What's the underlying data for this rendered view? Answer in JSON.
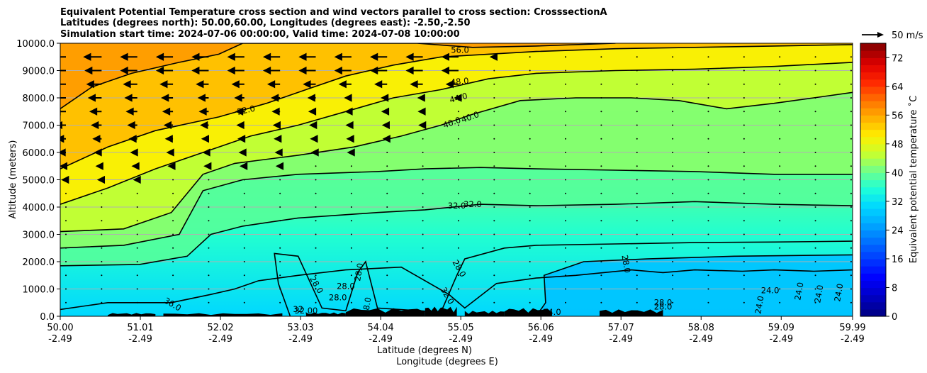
{
  "chart_data": {
    "type": "heatmap",
    "title_lines": [
      "Equivalent Potential Temperature cross section and wind vectors parallel to cross section: CrosssectionA",
      "Latitudes (degrees north): 50.00,60.00, Longitudes (degrees east): -2.50,-2.50",
      "Simulation start time: 2024-07-06 00:00:00, Valid time: 2024-07-08 10:00:00"
    ],
    "ylabel": "Altitude (meters)",
    "xlabel_lat": "Latitude (degrees N)",
    "xlabel_lon": "Longitude (degrees E)",
    "x_tick_values": [
      50.0,
      51.01,
      52.02,
      53.03,
      54.04,
      55.05,
      56.06,
      57.07,
      58.08,
      59.09,
      59.99
    ],
    "x_tick_labels": [
      "50.00",
      "51.01",
      "52.02",
      "53.03",
      "54.04",
      "55.05",
      "56.06",
      "57.07",
      "58.08",
      "59.09",
      "59.99"
    ],
    "x_tick_sublabels": [
      "-2.49",
      "-2.49",
      "-2.49",
      "-2.49",
      "-2.49",
      "-2.49",
      "-2.49",
      "-2.49",
      "-2.49",
      "-2.49",
      "-2.49"
    ],
    "xlim": [
      50.0,
      59.99
    ],
    "y_ticks": [
      0,
      1000,
      2000,
      3000,
      4000,
      5000,
      6000,
      7000,
      8000,
      9000,
      10000
    ],
    "y_tick_labels": [
      "0.0",
      "1000.0",
      "2000.0",
      "3000.0",
      "4000.0",
      "5000.0",
      "6000.0",
      "7000.0",
      "8000.0",
      "9000.0",
      "10000.0"
    ],
    "ylim": [
      0,
      10000
    ],
    "grid": "horizontal",
    "colorbar": {
      "label": "Equivalent potential temperature ˚C",
      "range": [
        0,
        76
      ],
      "ticks": [
        0,
        8,
        16,
        24,
        32,
        40,
        48,
        56,
        64,
        72
      ],
      "tick_labels": [
        "0",
        "8",
        "16",
        "24",
        "32",
        "40",
        "48",
        "56",
        "64",
        "72"
      ],
      "colors": [
        "#00008c",
        "#0000c8",
        "#0000ff",
        "#0038ff",
        "#0070ff",
        "#00a8ff",
        "#00d8ff",
        "#1effd8",
        "#70ff8a",
        "#c8ff2e",
        "#ffee00",
        "#ffb000",
        "#ff7000",
        "#ff2800",
        "#e00000",
        "#900000"
      ]
    },
    "quiver_key": {
      "label": "50 m/s",
      "speed": 50
    },
    "contours": [
      {
        "level": 24,
        "label": "24.0",
        "points": [
          [
            56.0,
            0
          ],
          [
            56.12,
            500
          ],
          [
            56.1,
            1500
          ],
          [
            56.6,
            2000
          ],
          [
            57.4,
            2100
          ],
          [
            58.5,
            2200
          ],
          [
            59.99,
            2250
          ]
        ]
      },
      {
        "level": 28,
        "label": "28.0",
        "points": [
          [
            52.9,
            0
          ],
          [
            52.75,
            1200
          ],
          [
            52.7,
            2300
          ],
          [
            53.0,
            2200
          ],
          [
            53.3,
            300
          ],
          [
            53.6,
            200
          ],
          [
            53.75,
            1600
          ],
          [
            53.85,
            2000
          ],
          [
            54.0,
            300
          ],
          [
            54.8,
            150
          ],
          [
            55.0,
            1500
          ],
          [
            55.1,
            2100
          ],
          [
            55.6,
            2500
          ],
          [
            56.0,
            2600
          ],
          [
            57.0,
            2650
          ],
          [
            58.0,
            2700
          ],
          [
            59.0,
            2720
          ],
          [
            59.99,
            2750
          ]
        ]
      },
      {
        "level": 32,
        "label": "32.0",
        "points": [
          [
            50.0,
            250
          ],
          [
            50.6,
            500
          ],
          [
            51.4,
            500
          ],
          [
            51.9,
            800
          ],
          [
            52.2,
            1000
          ],
          [
            52.5,
            1300
          ],
          [
            53.0,
            1500
          ],
          [
            53.6,
            1700
          ],
          [
            54.3,
            1800
          ],
          [
            54.9,
            800
          ],
          [
            55.1,
            300
          ],
          [
            55.5,
            1200
          ],
          [
            56.0,
            1400
          ],
          [
            56.5,
            1500
          ],
          [
            57.2,
            1700
          ],
          [
            57.6,
            1600
          ],
          [
            58.0,
            1700
          ],
          [
            58.6,
            1650
          ],
          [
            59.0,
            1700
          ],
          [
            59.5,
            1650
          ],
          [
            59.99,
            1700
          ]
        ]
      },
      {
        "level": 36,
        "label": "36.0",
        "points": [
          [
            50.0,
            1850
          ],
          [
            51.0,
            1900
          ],
          [
            51.6,
            2200
          ],
          [
            51.9,
            3000
          ],
          [
            52.3,
            3300
          ],
          [
            53.0,
            3600
          ],
          [
            54.0,
            3800
          ],
          [
            54.6,
            3900
          ],
          [
            55.3,
            4100
          ],
          [
            56.0,
            4050
          ],
          [
            57.0,
            4100
          ],
          [
            58.0,
            4200
          ],
          [
            59.0,
            4100
          ],
          [
            59.99,
            4050
          ]
        ]
      },
      {
        "level": 40,
        "label": "40.0",
        "points": [
          [
            50.0,
            2500
          ],
          [
            50.8,
            2600
          ],
          [
            51.5,
            3000
          ],
          [
            51.8,
            4600
          ],
          [
            52.3,
            5000
          ],
          [
            53.0,
            5200
          ],
          [
            54.0,
            5300
          ],
          [
            54.6,
            5400
          ],
          [
            55.3,
            5450
          ],
          [
            56.0,
            5400
          ],
          [
            57.0,
            5350
          ],
          [
            58.0,
            5300
          ],
          [
            59.0,
            5200
          ],
          [
            59.99,
            5200
          ]
        ]
      },
      {
        "level": 44,
        "label": "44.0",
        "points": [
          [
            50.0,
            3100
          ],
          [
            50.8,
            3200
          ],
          [
            51.4,
            3800
          ],
          [
            51.8,
            5200
          ],
          [
            52.2,
            5600
          ],
          [
            53.0,
            5900
          ],
          [
            53.7,
            6200
          ],
          [
            54.3,
            6600
          ],
          [
            54.8,
            7000
          ],
          [
            55.2,
            7400
          ],
          [
            55.8,
            7900
          ],
          [
            56.5,
            8000
          ],
          [
            57.2,
            8000
          ],
          [
            57.8,
            7900
          ],
          [
            58.4,
            7600
          ],
          [
            59.0,
            7800
          ],
          [
            59.5,
            8000
          ],
          [
            59.99,
            8200
          ]
        ]
      },
      {
        "level": 48,
        "label": "48.0",
        "points": [
          [
            50.0,
            4100
          ],
          [
            50.6,
            4700
          ],
          [
            51.2,
            5400
          ],
          [
            51.8,
            6000
          ],
          [
            52.4,
            6600
          ],
          [
            53.0,
            7000
          ],
          [
            53.6,
            7500
          ],
          [
            54.2,
            8000
          ],
          [
            54.8,
            8300
          ],
          [
            55.4,
            8700
          ],
          [
            56.0,
            8900
          ],
          [
            57.0,
            9000
          ],
          [
            58.0,
            9050
          ],
          [
            59.0,
            9150
          ],
          [
            59.99,
            9300
          ]
        ]
      },
      {
        "level": 52,
        "label": "52.0",
        "points": [
          [
            50.0,
            5400
          ],
          [
            50.6,
            6200
          ],
          [
            51.2,
            6800
          ],
          [
            52.0,
            7300
          ],
          [
            52.6,
            7800
          ],
          [
            53.1,
            8300
          ],
          [
            53.6,
            8800
          ],
          [
            54.2,
            9200
          ],
          [
            54.8,
            9500
          ],
          [
            55.4,
            9600
          ],
          [
            56.0,
            9700
          ],
          [
            57.0,
            9800
          ],
          [
            58.0,
            9850
          ],
          [
            59.0,
            9900
          ],
          [
            59.99,
            9950
          ]
        ]
      },
      {
        "level": 56,
        "label": "56.0",
        "points": [
          [
            50.0,
            7600
          ],
          [
            50.4,
            8400
          ],
          [
            50.9,
            8900
          ],
          [
            51.5,
            9300
          ],
          [
            52.0,
            9600
          ],
          [
            52.3,
            10000
          ],
          [
            54.5,
            10000
          ],
          [
            55.2,
            9850
          ],
          [
            56.0,
            9900
          ],
          [
            57.0,
            10000
          ]
        ]
      }
    ],
    "contour_labels": [
      {
        "text": "52.0",
        "x": 52.35,
        "y": 7450,
        "angle": -12
      },
      {
        "text": "56.0",
        "x": 55.04,
        "y": 9650,
        "angle": 0
      },
      {
        "text": "48.0",
        "x": 55.04,
        "y": 8500,
        "angle": -5
      },
      {
        "text": "44.0",
        "x": 55.03,
        "y": 7900,
        "angle": -15
      },
      {
        "text": "40.0",
        "x": 54.95,
        "y": 7000,
        "angle": -20
      },
      {
        "text": "40.0",
        "x": 55.18,
        "y": 7200,
        "angle": -20
      },
      {
        "text": "32.0",
        "x": 55.0,
        "y": 3950,
        "angle": 0
      },
      {
        "text": "32.0",
        "x": 55.2,
        "y": 4000,
        "angle": 0
      },
      {
        "text": "36.0",
        "x": 51.4,
        "y": 350,
        "angle": 30
      },
      {
        "text": "28.0",
        "x": 53.2,
        "y": 1100,
        "angle": 60
      },
      {
        "text": "28.0",
        "x": 53.6,
        "y": 1000,
        "angle": 0
      },
      {
        "text": "28.0",
        "x": 53.5,
        "y": 580,
        "angle": 0
      },
      {
        "text": "28.0",
        "x": 53.8,
        "y": 1600,
        "angle": -80
      },
      {
        "text": "32.0",
        "x": 54.85,
        "y": 700,
        "angle": 60
      },
      {
        "text": "28.0",
        "x": 55.0,
        "y": 1700,
        "angle": 60
      },
      {
        "text": "28.0",
        "x": 57.1,
        "y": 1900,
        "angle": 80
      },
      {
        "text": "24.0",
        "x": 56.2,
        "y": 50,
        "angle": 0
      },
      {
        "text": "28.0",
        "x": 57.6,
        "y": 400,
        "angle": 0
      },
      {
        "text": "28.0",
        "x": 57.6,
        "y": 250,
        "angle": 0
      },
      {
        "text": "24.0",
        "x": 58.95,
        "y": 850,
        "angle": 0
      },
      {
        "text": "24.0",
        "x": 58.85,
        "y": 400,
        "angle": -80
      },
      {
        "text": "24.0",
        "x": 59.35,
        "y": 900,
        "angle": -80
      },
      {
        "text": "24.0",
        "x": 59.6,
        "y": 800,
        "angle": -80
      },
      {
        "text": "24.0",
        "x": 59.85,
        "y": 850,
        "angle": -80
      },
      {
        "text": "32.00",
        "x": 53.1,
        "y": 100,
        "angle": 0
      },
      {
        "text": "32",
        "x": 53.0,
        "y": 150,
        "angle": 0
      },
      {
        "text": "28.0",
        "x": 53.9,
        "y": 350,
        "angle": -80
      }
    ],
    "wind_rows_m": [
      500,
      1000,
      1500,
      2000,
      2500,
      3000,
      3500,
      4000,
      4500,
      5000,
      5500,
      6000,
      6500,
      7000,
      7500,
      8000,
      8500,
      9000,
      9500
    ],
    "wind_cols_lat": [
      50.0,
      50.45,
      50.9,
      51.35,
      51.8,
      52.25,
      52.7,
      53.15,
      53.6,
      54.05,
      54.5,
      54.95,
      55.4,
      55.85,
      56.3,
      56.75,
      57.2,
      57.65,
      58.1,
      58.55,
      59.0,
      59.45,
      59.9
    ]
  }
}
